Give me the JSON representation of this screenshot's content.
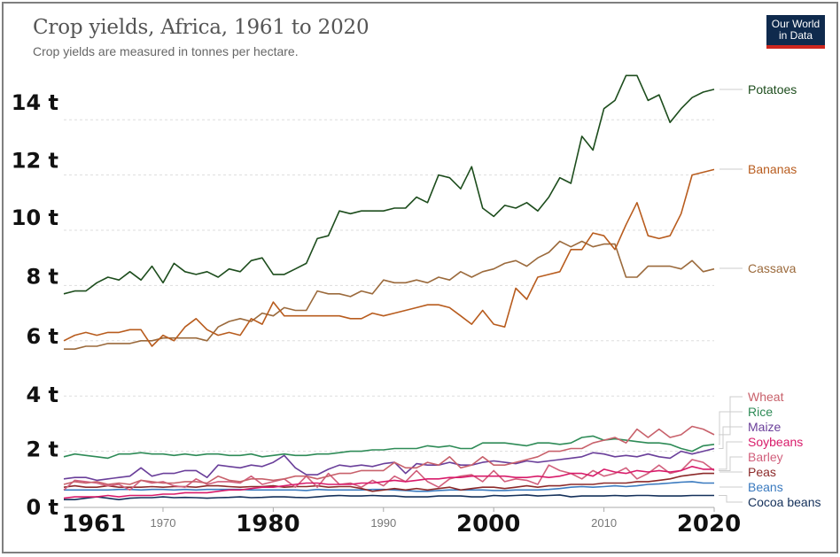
{
  "header": {
    "title": "Crop yields, Africa, 1961 to 2020",
    "subtitle": "Crop yields are measured in tonnes per hectare.",
    "logo_line1": "Our World",
    "logo_line2": "in Data"
  },
  "chart_data": {
    "type": "line",
    "title": "Crop yields, Africa, 1961 to 2020",
    "subtitle": "Crop yields are measured in tonnes per hectare.",
    "xlabel": "",
    "ylabel": "",
    "xlim": [
      1961,
      2020
    ],
    "ylim": [
      0,
      15.6
    ],
    "grid": true,
    "legend_placement": "right (inline line-end labels)",
    "y_ticks": [
      {
        "value": 0,
        "label": "0 t"
      },
      {
        "value": 2,
        "label": "2 t"
      },
      {
        "value": 4,
        "label": "4 t"
      },
      {
        "value": 6,
        "label": "6 t"
      },
      {
        "value": 8,
        "label": "8 t"
      },
      {
        "value": 10,
        "label": "10 t"
      },
      {
        "value": 12,
        "label": "12 t"
      },
      {
        "value": 14,
        "label": "14 t"
      }
    ],
    "x_ticks": [
      {
        "value": 1961,
        "label": "1961",
        "style": "big"
      },
      {
        "value": 1970,
        "label": "1970",
        "style": "small"
      },
      {
        "value": 1980,
        "label": "1980",
        "style": "big"
      },
      {
        "value": 1990,
        "label": "1990",
        "style": "small"
      },
      {
        "value": 2000,
        "label": "2000",
        "style": "big"
      },
      {
        "value": 2010,
        "label": "2010",
        "style": "small"
      },
      {
        "value": 2020,
        "label": "2020",
        "style": "big"
      }
    ],
    "x": [
      1961,
      1962,
      1963,
      1964,
      1965,
      1966,
      1967,
      1968,
      1969,
      1970,
      1971,
      1972,
      1973,
      1974,
      1975,
      1976,
      1977,
      1978,
      1979,
      1980,
      1981,
      1982,
      1983,
      1984,
      1985,
      1986,
      1987,
      1988,
      1989,
      1990,
      1991,
      1992,
      1993,
      1994,
      1995,
      1996,
      1997,
      1998,
      1999,
      2000,
      2001,
      2002,
      2003,
      2004,
      2005,
      2006,
      2007,
      2008,
      2009,
      2010,
      2011,
      2012,
      2013,
      2014,
      2015,
      2016,
      2017,
      2018,
      2019,
      2020
    ],
    "series": [
      {
        "name": "Potatoes",
        "color": "#1d4d1d",
        "label_value": 15.1,
        "values": [
          7.7,
          7.8,
          7.8,
          8.1,
          8.3,
          8.2,
          8.5,
          8.2,
          8.7,
          8.1,
          8.8,
          8.5,
          8.4,
          8.5,
          8.3,
          8.6,
          8.5,
          8.9,
          9.0,
          8.4,
          8.4,
          8.6,
          8.8,
          9.7,
          9.8,
          10.7,
          10.6,
          10.7,
          10.7,
          10.7,
          10.8,
          10.8,
          11.2,
          11.0,
          12.0,
          11.9,
          11.5,
          12.3,
          10.8,
          10.5,
          10.9,
          10.8,
          11.0,
          10.7,
          11.2,
          11.9,
          11.7,
          13.4,
          12.9,
          14.4,
          14.7,
          15.6,
          15.6,
          14.7,
          14.9,
          13.9,
          14.4,
          14.8,
          15.0,
          15.1
        ]
      },
      {
        "name": "Bananas",
        "color": "#b85c1e",
        "label_value": 12.2,
        "values": [
          6.0,
          6.2,
          6.3,
          6.2,
          6.3,
          6.3,
          6.4,
          6.4,
          5.8,
          6.2,
          6.0,
          6.5,
          6.8,
          6.4,
          6.2,
          6.3,
          6.2,
          6.8,
          6.6,
          7.4,
          6.9,
          6.9,
          6.9,
          6.9,
          6.9,
          6.9,
          6.8,
          6.8,
          7.0,
          6.9,
          7.0,
          7.1,
          7.2,
          7.3,
          7.3,
          7.2,
          6.9,
          6.6,
          7.1,
          6.6,
          6.5,
          7.9,
          7.5,
          8.3,
          8.4,
          8.5,
          9.3,
          9.3,
          9.9,
          9.8,
          9.3,
          10.2,
          11.0,
          9.8,
          9.7,
          9.8,
          10.6,
          12.0,
          12.1,
          12.2
        ]
      },
      {
        "name": "Cassava",
        "color": "#9b6a3c",
        "label_value": 8.6,
        "values": [
          5.7,
          5.7,
          5.8,
          5.8,
          5.9,
          5.9,
          5.9,
          6.0,
          6.0,
          6.1,
          6.1,
          6.1,
          6.1,
          6.0,
          6.5,
          6.7,
          6.8,
          6.7,
          7.0,
          6.9,
          7.2,
          7.1,
          7.1,
          7.8,
          7.7,
          7.7,
          7.6,
          7.8,
          7.7,
          8.2,
          8.1,
          8.1,
          8.2,
          8.1,
          8.3,
          8.2,
          8.5,
          8.3,
          8.5,
          8.6,
          8.8,
          8.9,
          8.7,
          9.0,
          9.2,
          9.6,
          9.4,
          9.6,
          9.4,
          9.5,
          9.5,
          8.3,
          8.3,
          8.7,
          8.7,
          8.7,
          8.6,
          8.9,
          8.5,
          8.6
        ]
      },
      {
        "name": "Wheat",
        "color": "#c8616b",
        "label_value": 2.6,
        "values": [
          0.8,
          0.9,
          0.85,
          0.9,
          0.8,
          0.85,
          0.8,
          0.95,
          0.9,
          0.85,
          0.85,
          0.9,
          0.9,
          0.85,
          1.1,
          0.95,
          0.9,
          1.0,
          1.0,
          0.95,
          1.0,
          1.1,
          1.1,
          1.0,
          1.1,
          1.2,
          1.2,
          1.3,
          1.3,
          1.3,
          1.6,
          1.4,
          1.4,
          1.6,
          1.5,
          1.8,
          1.4,
          1.5,
          1.8,
          1.5,
          1.5,
          1.6,
          1.7,
          1.8,
          2.0,
          2.0,
          2.1,
          2.1,
          2.3,
          2.4,
          2.5,
          2.3,
          2.8,
          2.5,
          2.8,
          2.5,
          2.6,
          2.9,
          2.8,
          2.6
        ]
      },
      {
        "name": "Rice",
        "color": "#2e8b57",
        "label_value": 2.2,
        "values": [
          1.8,
          1.9,
          1.85,
          1.8,
          1.75,
          1.9,
          1.9,
          1.95,
          1.9,
          1.9,
          1.85,
          1.9,
          1.85,
          1.9,
          1.9,
          1.85,
          1.85,
          1.9,
          1.8,
          1.85,
          1.9,
          1.85,
          1.85,
          1.9,
          1.9,
          1.95,
          2.0,
          2.0,
          2.05,
          2.05,
          2.1,
          2.1,
          2.1,
          2.2,
          2.15,
          2.2,
          2.1,
          2.1,
          2.3,
          2.3,
          2.3,
          2.25,
          2.2,
          2.3,
          2.3,
          2.25,
          2.3,
          2.5,
          2.55,
          2.4,
          2.45,
          2.4,
          2.35,
          2.3,
          2.3,
          2.25,
          2.1,
          2.0,
          2.2,
          2.25
        ]
      },
      {
        "name": "Maize",
        "color": "#6a3f9a",
        "label_value": 2.1,
        "values": [
          1.0,
          1.05,
          1.05,
          0.95,
          1.0,
          1.05,
          1.1,
          1.4,
          1.1,
          1.2,
          1.2,
          1.3,
          1.3,
          1.05,
          1.5,
          1.45,
          1.4,
          1.5,
          1.45,
          1.6,
          1.85,
          1.4,
          1.15,
          1.15,
          1.35,
          1.5,
          1.45,
          1.5,
          1.45,
          1.55,
          1.6,
          1.2,
          1.55,
          1.5,
          1.5,
          1.6,
          1.5,
          1.5,
          1.6,
          1.65,
          1.6,
          1.55,
          1.65,
          1.6,
          1.65,
          1.7,
          1.75,
          1.8,
          1.95,
          1.9,
          1.8,
          1.85,
          1.8,
          1.9,
          1.8,
          1.75,
          2.0,
          1.9,
          2.0,
          2.1
        ]
      },
      {
        "name": "Soybeans",
        "color": "#d81b6a",
        "label_value": 1.3,
        "values": [
          0.3,
          0.35,
          0.35,
          0.35,
          0.4,
          0.35,
          0.4,
          0.4,
          0.4,
          0.45,
          0.45,
          0.5,
          0.5,
          0.5,
          0.55,
          0.6,
          0.6,
          0.65,
          0.7,
          0.7,
          0.75,
          0.8,
          0.85,
          0.85,
          0.8,
          0.8,
          0.8,
          0.85,
          0.85,
          0.9,
          0.95,
          0.9,
          0.95,
          1.0,
          1.0,
          1.05,
          1.05,
          1.1,
          1.1,
          1.1,
          1.1,
          1.05,
          1.05,
          1.1,
          1.05,
          1.1,
          1.2,
          1.2,
          1.1,
          1.35,
          1.25,
          1.2,
          1.3,
          1.25,
          1.3,
          1.25,
          1.3,
          1.45,
          1.35,
          1.35
        ]
      },
      {
        "name": "Barley",
        "color": "#d15f7c",
        "label_value": 1.35,
        "values": [
          0.6,
          0.95,
          0.9,
          0.85,
          0.75,
          0.8,
          0.6,
          0.95,
          0.85,
          0.9,
          0.75,
          0.7,
          1.0,
          0.8,
          0.9,
          0.9,
          0.85,
          1.1,
          0.8,
          0.9,
          1.0,
          0.7,
          1.1,
          0.7,
          1.2,
          0.8,
          0.85,
          0.7,
          0.95,
          0.75,
          1.1,
          0.9,
          1.3,
          0.9,
          0.7,
          1.0,
          1.1,
          1.15,
          0.9,
          1.3,
          0.9,
          1.0,
          0.95,
          0.8,
          1.5,
          1.3,
          1.2,
          1.0,
          1.3,
          1.1,
          1.2,
          1.4,
          1.0,
          1.2,
          1.5,
          1.2,
          1.3,
          1.7,
          1.6,
          1.3
        ]
      },
      {
        "name": "Peas",
        "color": "#8c2a2a",
        "label_value": 1.2,
        "values": [
          0.7,
          0.75,
          0.7,
          0.7,
          0.75,
          0.7,
          0.7,
          0.7,
          0.72,
          0.7,
          0.72,
          0.72,
          0.7,
          0.75,
          0.75,
          0.72,
          0.7,
          0.72,
          0.72,
          0.75,
          0.7,
          0.72,
          0.72,
          0.75,
          0.7,
          0.72,
          0.72,
          0.65,
          0.55,
          0.6,
          0.65,
          0.6,
          0.65,
          0.6,
          0.65,
          0.7,
          0.6,
          0.65,
          0.7,
          0.7,
          0.65,
          0.7,
          0.75,
          0.7,
          0.75,
          0.75,
          0.8,
          0.8,
          0.8,
          0.85,
          0.85,
          0.85,
          0.9,
          0.9,
          0.95,
          1.0,
          1.1,
          1.15,
          1.2,
          1.2
        ]
      },
      {
        "name": "Beans",
        "color": "#3a7abf",
        "label_value": 0.85,
        "values": [
          0.6,
          0.6,
          0.6,
          0.6,
          0.6,
          0.62,
          0.62,
          0.6,
          0.62,
          0.62,
          0.6,
          0.62,
          0.6,
          0.62,
          0.62,
          0.62,
          0.62,
          0.6,
          0.6,
          0.6,
          0.6,
          0.6,
          0.58,
          0.62,
          0.6,
          0.6,
          0.6,
          0.6,
          0.62,
          0.62,
          0.6,
          0.58,
          0.55,
          0.55,
          0.58,
          0.6,
          0.6,
          0.6,
          0.6,
          0.58,
          0.58,
          0.6,
          0.6,
          0.6,
          0.62,
          0.65,
          0.7,
          0.72,
          0.7,
          0.72,
          0.75,
          0.72,
          0.75,
          0.8,
          0.82,
          0.85,
          0.88,
          0.9,
          0.85,
          0.85
        ]
      },
      {
        "name": "Cocoa beans",
        "color": "#14305a",
        "label_value": 0.4,
        "values": [
          0.25,
          0.25,
          0.3,
          0.35,
          0.3,
          0.25,
          0.3,
          0.32,
          0.32,
          0.35,
          0.32,
          0.33,
          0.32,
          0.3,
          0.32,
          0.33,
          0.35,
          0.32,
          0.33,
          0.35,
          0.35,
          0.33,
          0.32,
          0.35,
          0.38,
          0.4,
          0.38,
          0.38,
          0.4,
          0.38,
          0.38,
          0.35,
          0.35,
          0.35,
          0.38,
          0.38,
          0.38,
          0.35,
          0.35,
          0.4,
          0.38,
          0.4,
          0.42,
          0.38,
          0.4,
          0.42,
          0.35,
          0.38,
          0.38,
          0.38,
          0.4,
          0.38,
          0.4,
          0.4,
          0.38,
          0.38,
          0.38,
          0.4,
          0.4,
          0.4
        ]
      }
    ]
  }
}
